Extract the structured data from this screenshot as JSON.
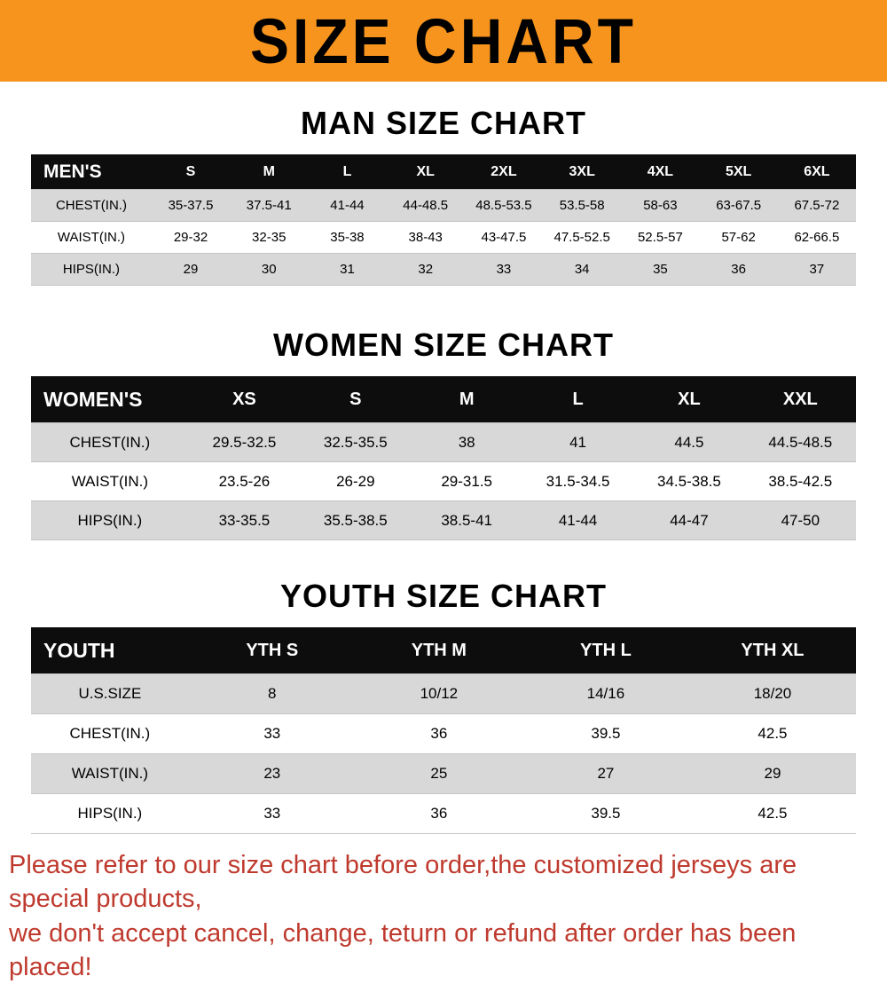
{
  "banner": {
    "title": "SIZE CHART",
    "bg_color": "#f7941d",
    "text_color": "#000000"
  },
  "sections": [
    {
      "id": "men",
      "heading": "MAN SIZE CHART",
      "table": {
        "label": "MEN'S",
        "columns": [
          "S",
          "M",
          "L",
          "XL",
          "2XL",
          "3XL",
          "4XL",
          "5XL",
          "6XL"
        ],
        "rows": [
          {
            "label": "CHEST(IN.)",
            "values": [
              "35-37.5",
              "37.5-41",
              "41-44",
              "44-48.5",
              "48.5-53.5",
              "53.5-58",
              "58-63",
              "63-67.5",
              "67.5-72"
            ]
          },
          {
            "label": "WAIST(IN.)",
            "values": [
              "29-32",
              "32-35",
              "35-38",
              "38-43",
              "43-47.5",
              "47.5-52.5",
              "52.5-57",
              "57-62",
              "62-66.5"
            ]
          },
          {
            "label": "HIPS(IN.)",
            "values": [
              "29",
              "30",
              "31",
              "32",
              "33",
              "34",
              "35",
              "36",
              "37"
            ]
          }
        ]
      }
    },
    {
      "id": "women",
      "heading": "WOMEN SIZE CHART",
      "table": {
        "label": "WOMEN'S",
        "columns": [
          "XS",
          "S",
          "M",
          "L",
          "XL",
          "XXL"
        ],
        "rows": [
          {
            "label": "CHEST(IN.)",
            "values": [
              "29.5-32.5",
              "32.5-35.5",
              "38",
              "41",
              "44.5",
              "44.5-48.5"
            ]
          },
          {
            "label": "WAIST(IN.)",
            "values": [
              "23.5-26",
              "26-29",
              "29-31.5",
              "31.5-34.5",
              "34.5-38.5",
              "38.5-42.5"
            ]
          },
          {
            "label": "HIPS(IN.)",
            "values": [
              "33-35.5",
              "35.5-38.5",
              "38.5-41",
              "41-44",
              "44-47",
              "47-50"
            ]
          }
        ]
      }
    },
    {
      "id": "youth",
      "heading": "YOUTH SIZE CHART",
      "table": {
        "label": "YOUTH",
        "columns": [
          "YTH S",
          "YTH M",
          "YTH L",
          "YTH XL"
        ],
        "rows": [
          {
            "label": "U.S.SIZE",
            "values": [
              "8",
              "10/12",
              "14/16",
              "18/20"
            ]
          },
          {
            "label": "CHEST(IN.)",
            "values": [
              "33",
              "36",
              "39.5",
              "42.5"
            ]
          },
          {
            "label": "WAIST(IN.)",
            "values": [
              "23",
              "25",
              "27",
              "29"
            ]
          },
          {
            "label": "HIPS(IN.)",
            "values": [
              "33",
              "36",
              "39.5",
              "42.5"
            ]
          }
        ]
      }
    }
  ],
  "footer": {
    "line1": "Please refer to our size chart before order,the customized jerseys are special products,",
    "line2": "we don't accept cancel, change, teturn or refund after order has been placed!",
    "text_color": "#bf3a2e"
  }
}
